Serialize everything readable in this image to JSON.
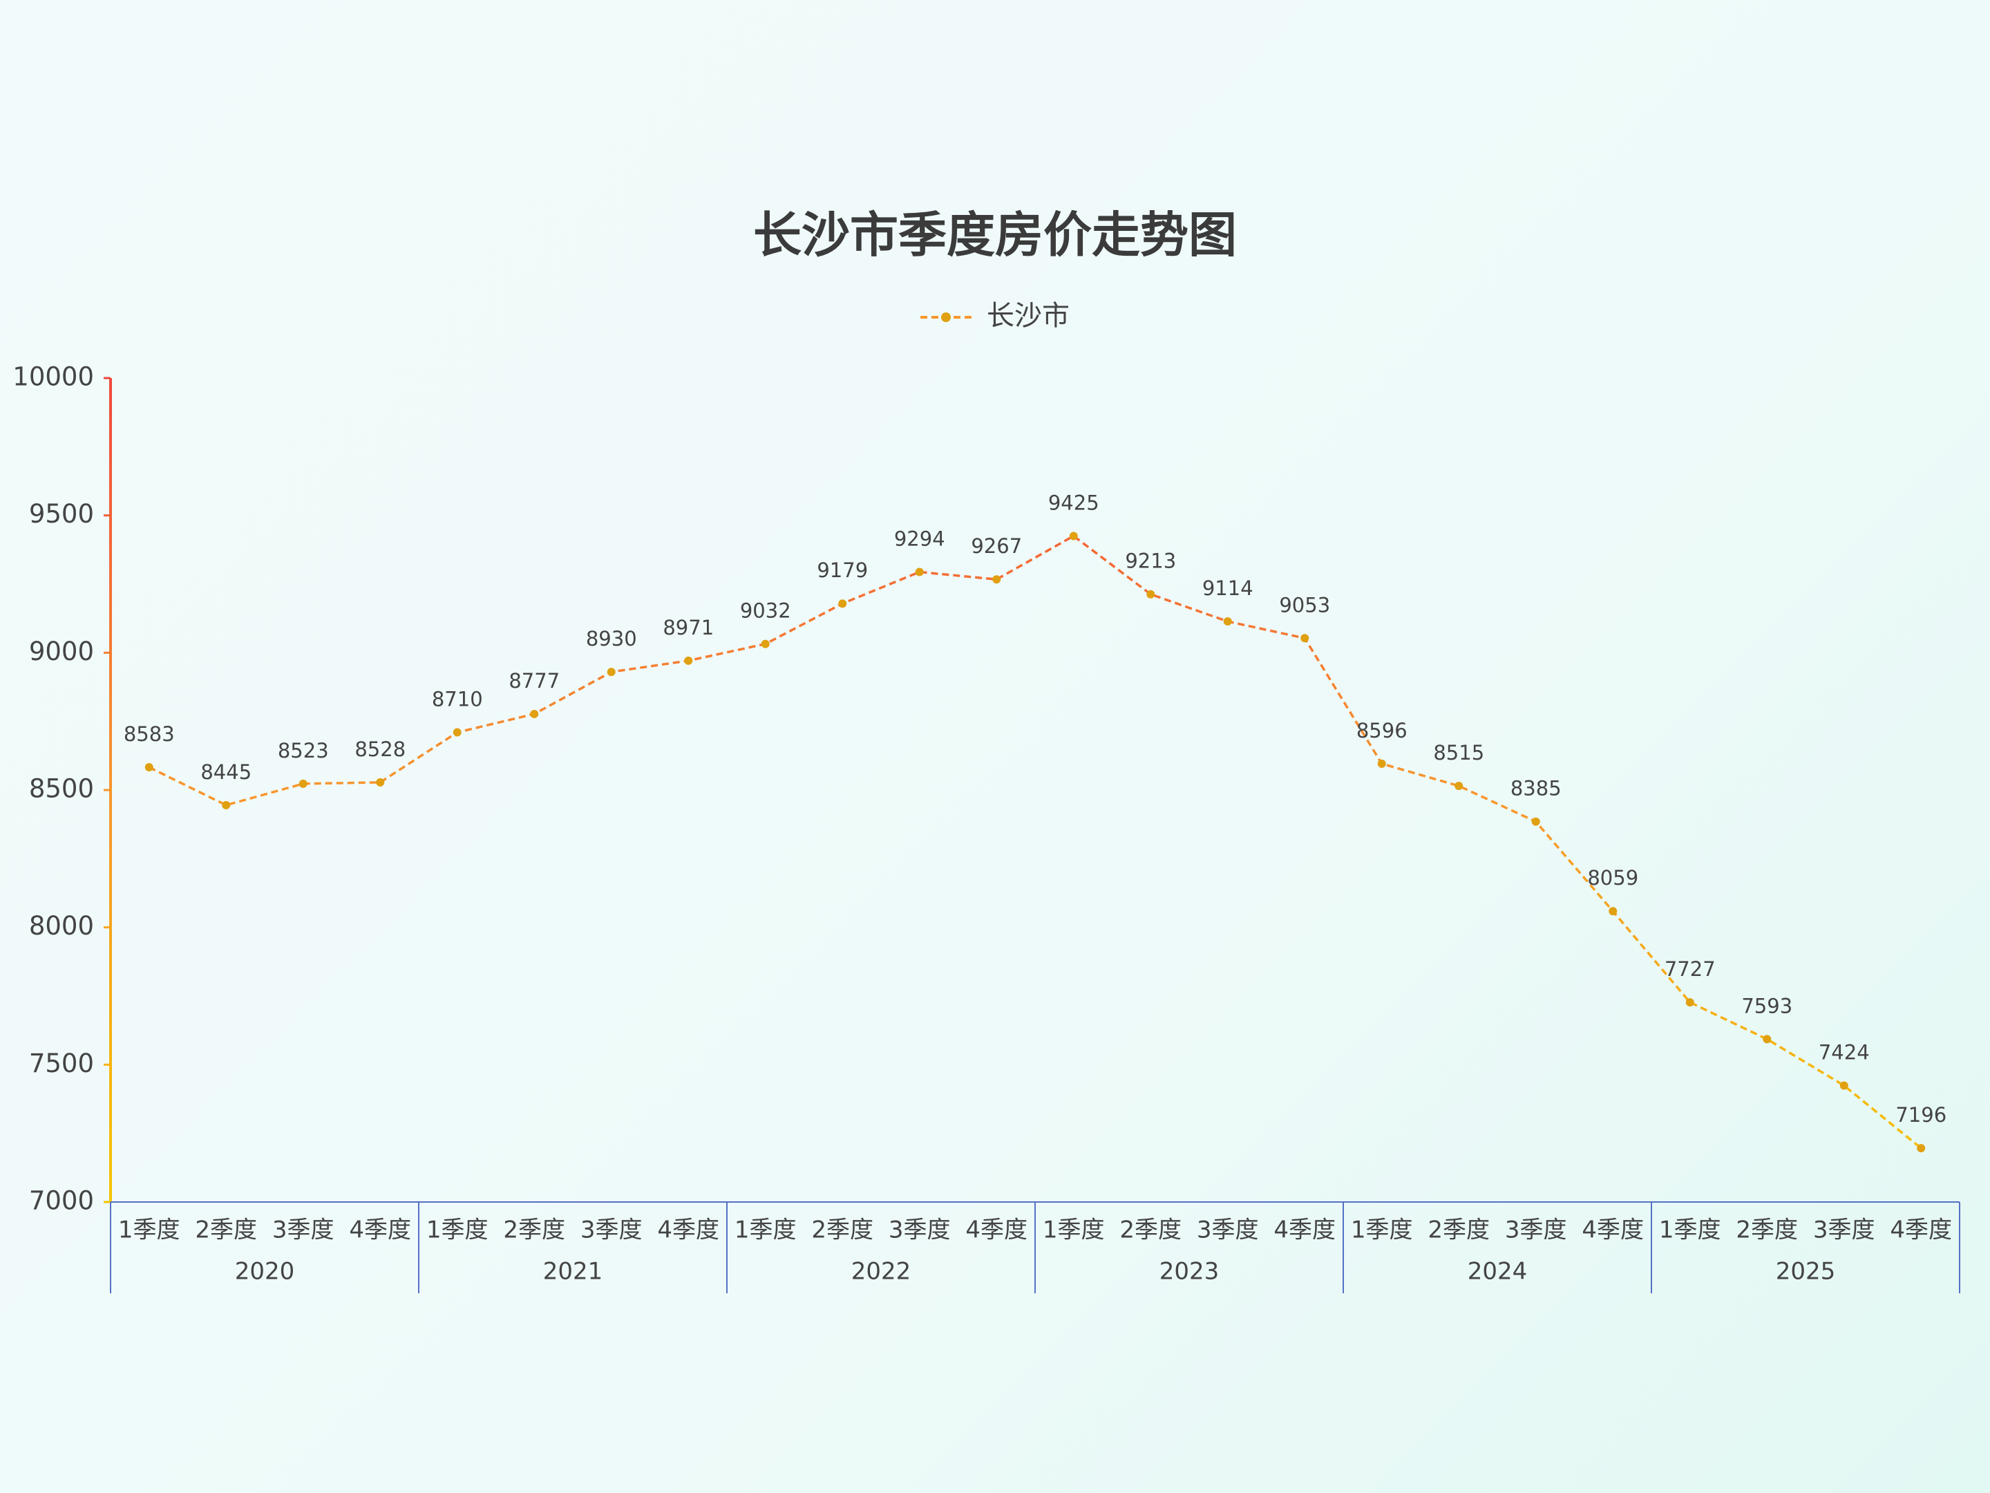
{
  "chart_data": {
    "type": "line",
    "title": "长沙市季度房价走势图",
    "categories": [
      "1季度",
      "2季度",
      "3季度",
      "4季度",
      "1季度",
      "2季度",
      "3季度",
      "4季度",
      "1季度",
      "2季度",
      "3季度",
      "4季度",
      "1季度",
      "2季度",
      "3季度",
      "4季度",
      "1季度",
      "2季度",
      "3季度",
      "4季度",
      "1季度",
      "2季度",
      "3季度",
      "4季度"
    ],
    "category_groups": [
      "2020",
      "2021",
      "2022",
      "2023",
      "2024",
      "2025"
    ],
    "series": [
      {
        "name": "长沙市",
        "color": "#e0a010",
        "values": [
          8583,
          8445,
          8523,
          8528,
          8710,
          8777,
          8930,
          8971,
          9032,
          9179,
          9294,
          9267,
          9425,
          9213,
          9114,
          9053,
          8596,
          8515,
          8385,
          8059,
          7727,
          7593,
          7424,
          7196
        ]
      }
    ],
    "line_gradient": [
      "#f5c400",
      "#f7962e",
      "#f0483c"
    ],
    "axis_color": "#5470c6",
    "ylim": [
      7000,
      10000
    ],
    "yticks": [
      7000,
      7500,
      8000,
      8500,
      9000,
      9500,
      10000
    ],
    "grid": false,
    "legend_position": "top",
    "data_labels": true
  }
}
